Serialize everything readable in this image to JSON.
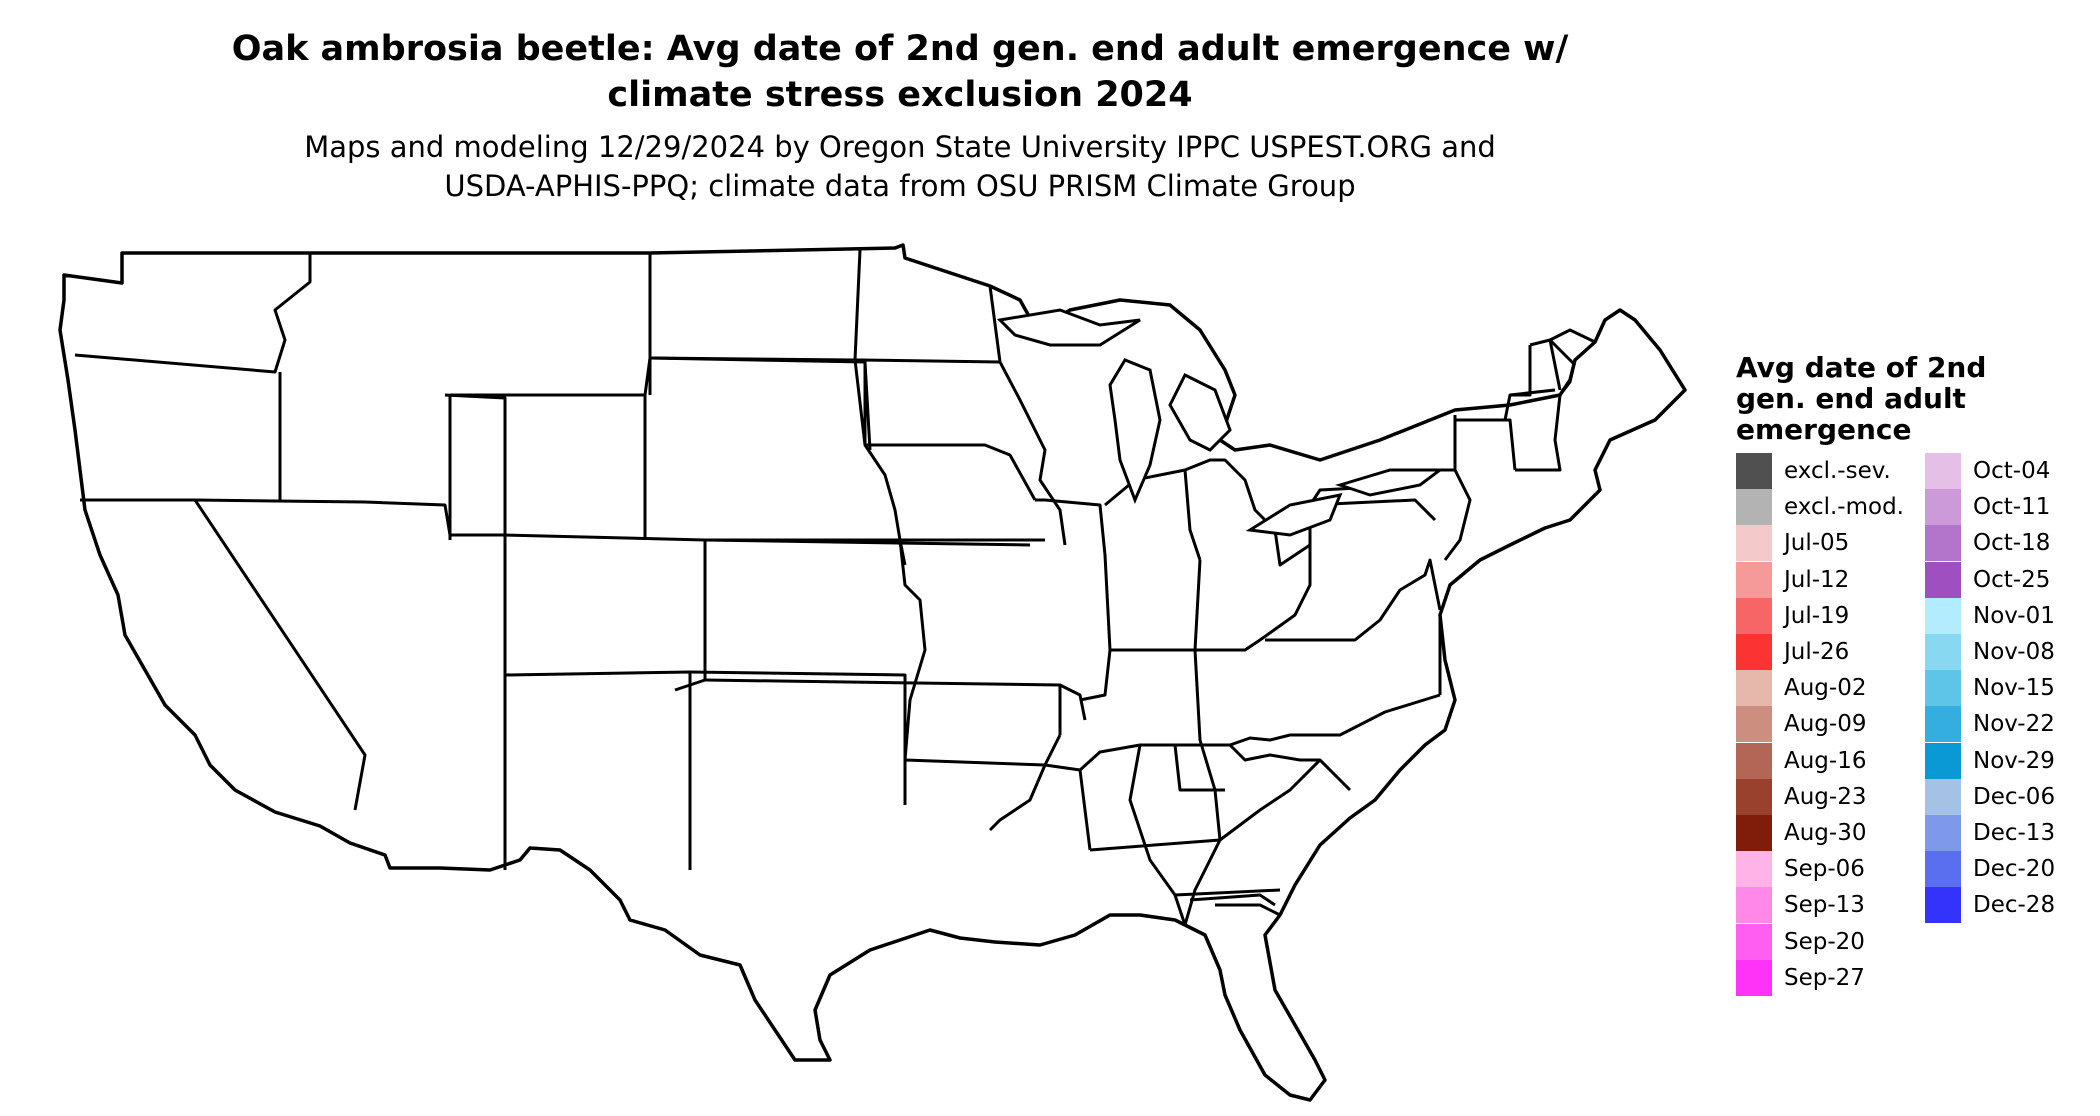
{
  "title_lines": [
    "Oak ambrosia beetle: Avg date of 2nd gen. end adult emergence w/",
    "climate stress exclusion 2024"
  ],
  "subtitle_lines": [
    "Maps and modeling 12/29/2024 by Oregon State University IPPC USPEST.ORG and",
    "USDA-APHIS-PPQ; climate data from OSU PRISM Climate Group"
  ],
  "legend": {
    "title_lines": [
      "Avg date of 2nd",
      "gen. end adult",
      "emergence"
    ],
    "column1": [
      {
        "label": "excl.-sev.",
        "color": "#505050"
      },
      {
        "label": "excl.-mod.",
        "color": "#b3b3b3"
      },
      {
        "label": "Jul-05",
        "color": "#f4c9c9"
      },
      {
        "label": "Jul-12",
        "color": "#f59999"
      },
      {
        "label": "Jul-19",
        "color": "#f66666"
      },
      {
        "label": "Jul-26",
        "color": "#fb3333"
      },
      {
        "label": "Aug-02",
        "color": "#e6b8ab"
      },
      {
        "label": "Aug-09",
        "color": "#cc8e7f"
      },
      {
        "label": "Aug-16",
        "color": "#b36655"
      },
      {
        "label": "Aug-23",
        "color": "#99412d"
      },
      {
        "label": "Aug-30",
        "color": "#7f1d0a"
      },
      {
        "label": "Sep-06",
        "color": "#ffb3e6"
      },
      {
        "label": "Sep-13",
        "color": "#ff88e8"
      },
      {
        "label": "Sep-20",
        "color": "#ff5ef0"
      },
      {
        "label": "Sep-27",
        "color": "#ff33f8"
      }
    ],
    "column2": [
      {
        "label": "Oct-04",
        "color": "#e6bfe6"
      },
      {
        "label": "Oct-11",
        "color": "#cc99d9"
      },
      {
        "label": "Oct-18",
        "color": "#b374cc"
      },
      {
        "label": "Oct-25",
        "color": "#9e4fc0"
      },
      {
        "label": "Nov-01",
        "color": "#b3ecff"
      },
      {
        "label": "Nov-08",
        "color": "#88d8f2"
      },
      {
        "label": "Nov-15",
        "color": "#5ec4e8"
      },
      {
        "label": "Nov-22",
        "color": "#33aede"
      },
      {
        "label": "Nov-29",
        "color": "#0a99d4"
      },
      {
        "label": "Dec-06",
        "color": "#a3c2e6"
      },
      {
        "label": "Dec-13",
        "color": "#7f99ea"
      },
      {
        "label": "Dec-20",
        "color": "#5a6ff0"
      },
      {
        "label": "Dec-28",
        "color": "#3333fb"
      }
    ]
  }
}
